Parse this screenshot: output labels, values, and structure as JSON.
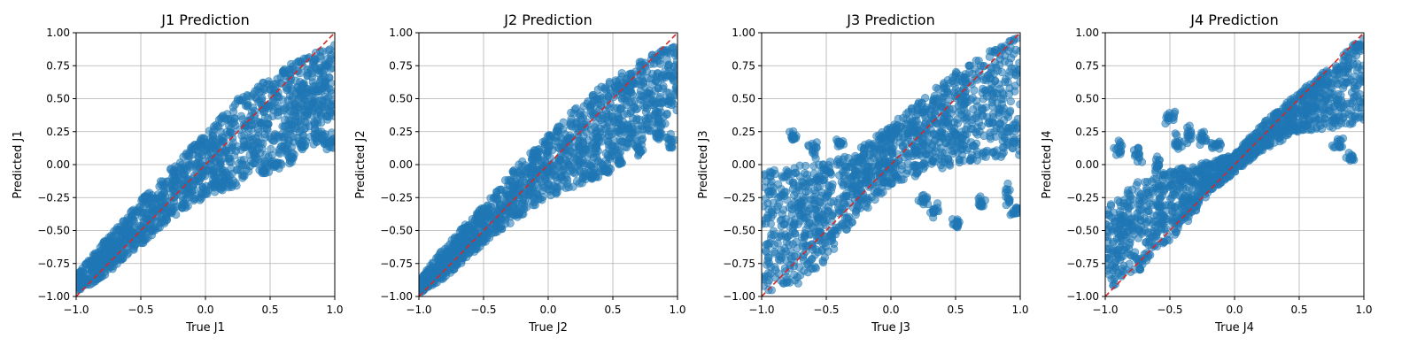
{
  "chart_data": [
    {
      "type": "scatter",
      "title": "J1 Prediction",
      "xlabel": "True J1",
      "ylabel": "Predicted J1",
      "xlim": [
        -1.0,
        1.0
      ],
      "ylim": [
        -1.0,
        1.0
      ],
      "xticks": [
        "−1.0",
        "−0.5",
        "0.0",
        "0.5",
        "1.0"
      ],
      "yticks": [
        "1.00",
        "0.75",
        "0.50",
        "0.25",
        "0.00",
        "−0.25",
        "−0.50",
        "−0.75",
        "−1.00"
      ],
      "grid": true,
      "point_color": "#1f77b4",
      "point_alpha": 0.55,
      "reference_line": {
        "from": [
          -1.0,
          -1.0
        ],
        "to": [
          1.0,
          1.0
        ],
        "color": "#d62728",
        "style": "dashed"
      },
      "band_profile": [
        [
          -1.0,
          -0.97,
          -0.84
        ],
        [
          -0.8,
          -0.86,
          -0.6
        ],
        [
          -0.5,
          -0.61,
          -0.27
        ],
        [
          -0.2,
          -0.37,
          0.04
        ],
        [
          0.0,
          -0.25,
          0.24
        ],
        [
          0.3,
          -0.14,
          0.55
        ],
        [
          0.6,
          0.07,
          0.73
        ],
        [
          0.8,
          0.24,
          0.84
        ],
        [
          1.0,
          0.36,
          0.92
        ]
      ],
      "band_outliers": [
        [
          0.45,
          -0.05,
          0.05
        ],
        [
          0.55,
          0.0,
          0.05
        ],
        [
          0.65,
          0.05,
          0.1
        ],
        [
          0.75,
          0.15,
          0.1
        ],
        [
          0.85,
          0.22,
          0.1
        ],
        [
          0.92,
          0.2,
          0.1
        ],
        [
          0.97,
          0.16,
          0.1
        ]
      ]
    },
    {
      "type": "scatter",
      "title": "J2 Prediction",
      "xlabel": "True J2",
      "ylabel": "Predicted J2",
      "xlim": [
        -1.0,
        1.0
      ],
      "ylim": [
        -1.0,
        1.0
      ],
      "xticks": [
        "−1.0",
        "−0.5",
        "0.0",
        "0.5",
        "1.0"
      ],
      "yticks": [
        "1.00",
        "0.75",
        "0.50",
        "0.25",
        "0.00",
        "−0.25",
        "−0.50",
        "−0.75",
        "−1.00"
      ],
      "grid": true,
      "point_color": "#1f77b4",
      "point_alpha": 0.55,
      "reference_line": {
        "from": [
          -1.0,
          -1.0
        ],
        "to": [
          1.0,
          1.0
        ],
        "color": "#d62728",
        "style": "dashed"
      },
      "band_profile": [
        [
          -1.0,
          -0.98,
          -0.88
        ],
        [
          -0.8,
          -0.86,
          -0.62
        ],
        [
          -0.5,
          -0.6,
          -0.3
        ],
        [
          -0.2,
          -0.38,
          0.03
        ],
        [
          0.0,
          -0.25,
          0.22
        ],
        [
          0.3,
          -0.13,
          0.52
        ],
        [
          0.6,
          0.09,
          0.72
        ],
        [
          0.8,
          0.24,
          0.83
        ],
        [
          1.0,
          0.37,
          0.92
        ]
      ],
      "band_outliers": [
        [
          0.35,
          -0.08,
          0.05
        ],
        [
          0.45,
          -0.04,
          0.05
        ],
        [
          0.55,
          0.02,
          0.05
        ],
        [
          0.7,
          0.12,
          0.1
        ],
        [
          0.85,
          0.22,
          0.1
        ],
        [
          0.95,
          0.17,
          0.1
        ]
      ]
    },
    {
      "type": "scatter",
      "title": "J3 Prediction",
      "xlabel": "True J3",
      "ylabel": "Predicted J3",
      "xlim": [
        -1.0,
        1.0
      ],
      "ylim": [
        -1.0,
        1.0
      ],
      "xticks": [
        "−1.0",
        "−0.5",
        "0.0",
        "0.5",
        "1.0"
      ],
      "yticks": [
        "1.00",
        "0.75",
        "0.50",
        "0.25",
        "0.00",
        "−0.25",
        "−0.50",
        "−0.75",
        "−1.00"
      ],
      "grid": true,
      "point_color": "#1f77b4",
      "point_alpha": 0.55,
      "reference_line": {
        "from": [
          -1.0,
          -1.0
        ],
        "to": [
          1.0,
          1.0
        ],
        "color": "#d62728",
        "style": "dashed"
      },
      "band_profile": [
        [
          -1.0,
          -0.97,
          -0.05
        ],
        [
          -0.7,
          -0.9,
          0.0
        ],
        [
          -0.5,
          -0.72,
          0.02
        ],
        [
          -0.3,
          -0.45,
          0.08
        ],
        [
          0.0,
          -0.15,
          0.3
        ],
        [
          0.3,
          -0.05,
          0.55
        ],
        [
          0.6,
          0.02,
          0.78
        ],
        [
          0.8,
          0.05,
          0.9
        ],
        [
          1.0,
          0.06,
          0.97
        ]
      ],
      "band_outliers": [
        [
          -0.75,
          0.22,
          0.08
        ],
        [
          -0.6,
          0.12,
          0.1
        ],
        [
          -0.4,
          0.16,
          0.05
        ],
        [
          0.25,
          -0.27,
          0.06
        ],
        [
          0.35,
          -0.35,
          0.08
        ],
        [
          0.5,
          -0.45,
          0.06
        ],
        [
          0.7,
          -0.3,
          0.1
        ],
        [
          0.9,
          -0.25,
          0.12
        ],
        [
          0.97,
          -0.35,
          0.06
        ]
      ]
    },
    {
      "type": "scatter",
      "title": "J4 Prediction",
      "xlabel": "True J4",
      "ylabel": "Predicted J4",
      "xlim": [
        -1.0,
        1.0
      ],
      "ylim": [
        -1.0,
        1.0
      ],
      "xticks": [
        "−1.0",
        "−0.5",
        "0.0",
        "0.5",
        "1.0"
      ],
      "yticks": [
        "1.00",
        "0.75",
        "0.50",
        "0.25",
        "0.00",
        "−0.25",
        "−0.50",
        "−0.75",
        "−1.00"
      ],
      "grid": true,
      "point_color": "#1f77b4",
      "point_alpha": 0.55,
      "reference_line": {
        "from": [
          -1.0,
          -1.0
        ],
        "to": [
          1.0,
          1.0
        ],
        "color": "#d62728",
        "style": "dashed"
      },
      "band_profile": [
        [
          -1.0,
          -0.95,
          -0.3
        ],
        [
          -0.8,
          -0.85,
          -0.15
        ],
        [
          -0.6,
          -0.7,
          -0.08
        ],
        [
          -0.4,
          -0.48,
          -0.02
        ],
        [
          -0.2,
          -0.22,
          0.02
        ],
        [
          0.0,
          -0.06,
          0.08
        ],
        [
          0.2,
          0.1,
          0.3
        ],
        [
          0.5,
          0.25,
          0.55
        ],
        [
          0.8,
          0.28,
          0.8
        ],
        [
          1.0,
          0.32,
          0.97
        ]
      ],
      "band_outliers": [
        [
          -0.9,
          0.12,
          0.1
        ],
        [
          -0.75,
          0.08,
          0.15
        ],
        [
          -0.6,
          0.0,
          0.15
        ],
        [
          -0.5,
          0.35,
          0.08
        ],
        [
          -0.45,
          0.15,
          0.12
        ],
        [
          -0.35,
          0.22,
          0.1
        ],
        [
          -0.25,
          0.2,
          0.08
        ],
        [
          -0.15,
          0.15,
          0.06
        ],
        [
          0.8,
          0.15,
          0.08
        ],
        [
          0.9,
          0.05,
          0.06
        ],
        [
          0.95,
          0.9,
          0.03
        ]
      ]
    }
  ]
}
